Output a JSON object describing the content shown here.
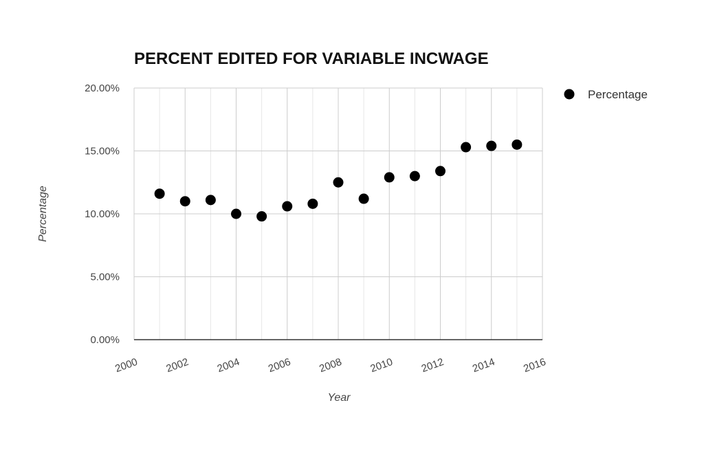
{
  "chart_data": {
    "type": "scatter",
    "title": "PERCENT EDITED FOR VARIABLE INCWAGE",
    "xlabel": "Year",
    "ylabel": "Percentage",
    "xlim": [
      2000,
      2016
    ],
    "ylim": [
      0,
      20
    ],
    "x_ticks": [
      "2000",
      "2002",
      "2004",
      "2006",
      "2008",
      "2010",
      "2012",
      "2014",
      "2016"
    ],
    "y_ticks": [
      "0.00%",
      "5.00%",
      "10.00%",
      "15.00%",
      "20.00%"
    ],
    "grid": true,
    "legend_position": "right",
    "series": [
      {
        "name": "Percentage",
        "color": "#000000",
        "points": [
          {
            "x": 2001,
            "y": 11.6
          },
          {
            "x": 2002,
            "y": 11.0
          },
          {
            "x": 2003,
            "y": 11.1
          },
          {
            "x": 2004,
            "y": 10.0
          },
          {
            "x": 2005,
            "y": 9.8
          },
          {
            "x": 2006,
            "y": 10.6
          },
          {
            "x": 2007,
            "y": 10.8
          },
          {
            "x": 2008,
            "y": 12.5
          },
          {
            "x": 2009,
            "y": 11.2
          },
          {
            "x": 2010,
            "y": 12.9
          },
          {
            "x": 2011,
            "y": 13.0
          },
          {
            "x": 2012,
            "y": 13.4
          },
          {
            "x": 2013,
            "y": 15.3
          },
          {
            "x": 2014,
            "y": 15.4
          },
          {
            "x": 2015,
            "y": 15.5
          }
        ]
      }
    ]
  }
}
